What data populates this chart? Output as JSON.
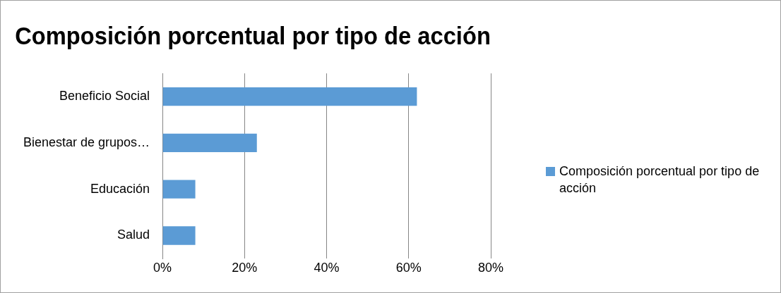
{
  "chart_data": {
    "type": "bar",
    "orientation": "horizontal",
    "title": "Composición porcentual por tipo de acción",
    "categories": [
      "Beneficio Social",
      "Bienestar de grupos…",
      "Educación",
      "Salud"
    ],
    "series": [
      {
        "name": "Composición porcentual por tipo de acción",
        "color": "#5b9bd5",
        "values": [
          62,
          23,
          8,
          8
        ]
      }
    ],
    "xlim": [
      0,
      80
    ],
    "xticks": [
      {
        "value": 0,
        "label": "0%"
      },
      {
        "value": 20,
        "label": "20%"
      },
      {
        "value": 40,
        "label": "40%"
      },
      {
        "value": 60,
        "label": "60%"
      },
      {
        "value": 80,
        "label": "80%"
      }
    ],
    "grid": "x",
    "legend": "right"
  }
}
